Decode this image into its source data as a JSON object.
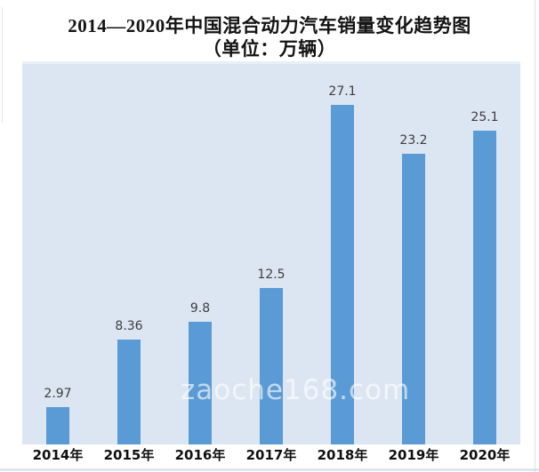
{
  "title": {
    "line1": "2014—2020年中国混合动力汽车销量变化趋势图",
    "line2": "（单位：万辆）"
  },
  "watermark": "zaoche168.com",
  "colors": {
    "bar": "#5b9bd5",
    "plot_background": "#dce6f2",
    "title_text": "#141414",
    "value_label_text": "#3d3d3d",
    "axis_label_text": "#101010",
    "watermark_text": "rgba(255,255,255,0.62)"
  },
  "chart_data": {
    "type": "bar",
    "categories": [
      "2014年",
      "2015年",
      "2016年",
      "2017年",
      "2018年",
      "2019年",
      "2020年"
    ],
    "values": [
      2.97,
      8.36,
      9.8,
      12.5,
      27.1,
      23.2,
      25.1
    ],
    "value_labels": [
      "2.97",
      "8.36",
      "9.8",
      "12.5",
      "27.1",
      "23.2",
      "25.1"
    ],
    "title": "2014—2020年中国混合动力汽车销量变化趋势图（单位：万辆）",
    "xlabel": "",
    "ylabel": "",
    "ylim": [
      0,
      30.4
    ],
    "grid": false,
    "legend": null,
    "data_labels": true
  }
}
